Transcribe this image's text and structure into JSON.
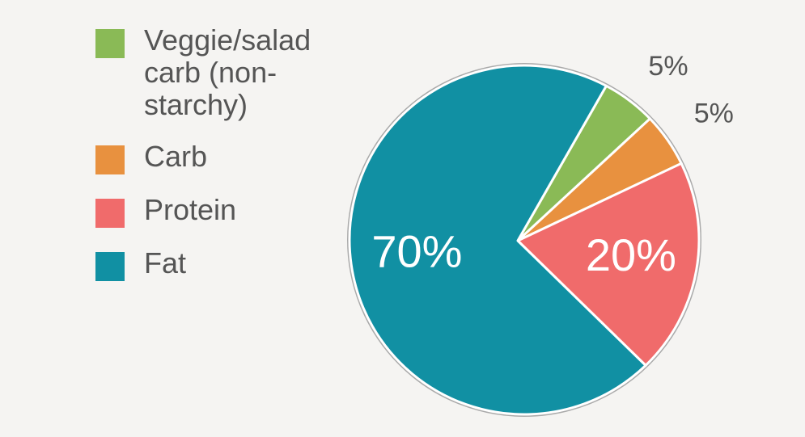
{
  "chart_data": {
    "type": "pie",
    "categories": [
      "Veggie/salad carb (non-starchy)",
      "Carb",
      "Protein",
      "Fat"
    ],
    "values": [
      5,
      5,
      20,
      70
    ],
    "value_labels": [
      "5%",
      "5%",
      "20%",
      "70%"
    ],
    "colors": [
      "#8aba56",
      "#e8913f",
      "#f06b6b",
      "#1190a3"
    ],
    "legend": "left"
  }
}
